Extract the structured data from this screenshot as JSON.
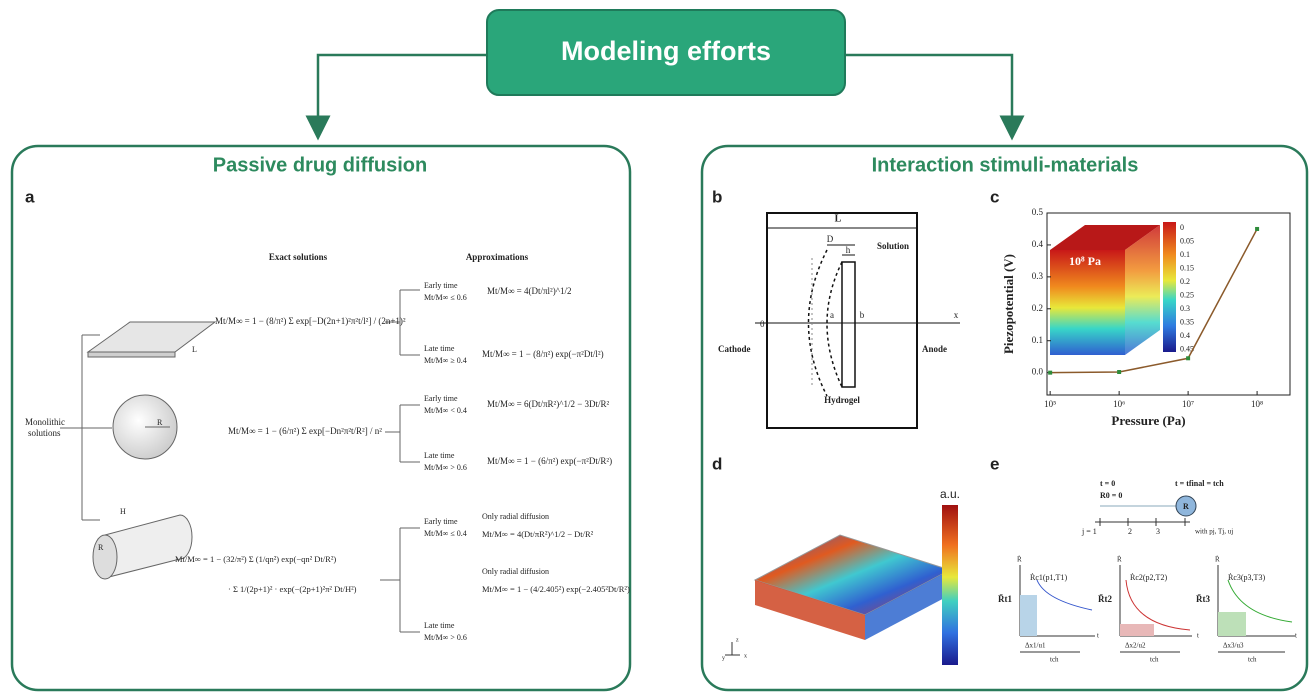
{
  "header": {
    "title": "Modeling efforts"
  },
  "panel_a": {
    "section_title": "Passive drug diffusion",
    "label": "a",
    "col_headers": [
      "Exact solutions",
      "Approximations"
    ],
    "monolithic": [
      "Monolithic",
      "solutions"
    ],
    "geometry_labels": [
      "L",
      "R",
      "H",
      "R"
    ],
    "slab": {
      "exact": "Mt/M∞ = 1 − (8/π²) Σ exp[−D(2n+1)²π²t/l²] / (2n+1)²",
      "early": [
        "Early time",
        "Mt/M∞ ≤ 0.6"
      ],
      "early_approx": "Mt/M∞ = 4(Dt/πl²)^1/2",
      "late": [
        "Late time",
        "Mt/M∞ ≥ 0.4"
      ],
      "late_approx": "Mt/M∞ = 1 − (8/π²) exp(−π²Dt/l²)"
    },
    "sphere": {
      "exact": "Mt/M∞ = 1 − (6/π²) Σ exp[−Dn²π²t/R²] / n²",
      "early": [
        "Early time",
        "Mt/M∞ < 0.4"
      ],
      "early_approx": "Mt/M∞ = 6(Dt/πR²)^1/2 − 3Dt/R²",
      "late": [
        "Late time",
        "Mt/M∞ > 0.6"
      ],
      "late_approx": "Mt/M∞ = 1 − (6/π²) exp(−π²Dt/R²)"
    },
    "cylinder": {
      "exact": [
        "Mt/M∞ = 1 − (32/π²) Σ (1/qn²) exp(−qn² Dt/R²)",
        "· Σ 1/(2p+1)² · exp(−(2p+1)²π² Dt/H²)"
      ],
      "early": [
        "Early time",
        "Mt/M∞ ≤ 0.4"
      ],
      "early_note": "Only radial diffusion",
      "early_approx": "Mt/M∞ = 4(Dt/πR²)^1/2 − Dt/R²",
      "late": [
        "Late time",
        "Mt/M∞ > 0.6"
      ],
      "late_note": "Only radial diffusion",
      "late_approx": "Mt/M∞ = 1 − (4/2.405²) exp(−2.405²Dt/R²)"
    }
  },
  "panel_right": {
    "section_title": "Interaction stimuli-materials"
  },
  "panel_b": {
    "label": "b",
    "texts": [
      "L",
      "D",
      "h",
      "Solution",
      "0",
      "a",
      "b",
      "x",
      "Cathode",
      "Anode",
      "Hydrogel"
    ]
  },
  "panel_c": {
    "label": "c",
    "inset_label": "10⁸ Pa",
    "colorbar_ticks": [
      "0",
      "0.05",
      "0.1",
      "0.15",
      "0.2",
      "0.25",
      "0.3",
      "0.35",
      "0.4",
      "0.45"
    ],
    "chart": {
      "type": "line",
      "x_label": "Pressure (Pa)",
      "y_label": "Piezopotential (V)",
      "x": [
        100000,
        1000000,
        10000000,
        100000000
      ],
      "values": [
        0,
        0.002,
        0.045,
        0.45
      ],
      "color": "#8b5a2b",
      "marker_color": "#2e8b3a",
      "log_x": true,
      "xlim": [
        90000,
        300000000
      ],
      "ylim": [
        -0.07,
        0.5
      ],
      "xticks": [
        {
          "value": 100000,
          "label": "10⁵"
        },
        {
          "value": 1000000,
          "label": "10⁶"
        },
        {
          "value": 10000000,
          "label": "10⁷"
        },
        {
          "value": 100000000,
          "label": "10⁸"
        }
      ],
      "yticks": [
        {
          "value": 0,
          "label": "0.0"
        },
        0.1,
        0.2,
        0.3,
        0.4,
        0.5
      ]
    }
  },
  "panel_d": {
    "label": "d",
    "colorbar_label": "a.u.",
    "axes": [
      "x",
      "y",
      "z"
    ]
  },
  "panel_e": {
    "label": "e",
    "top": [
      "t = 0",
      "t = tfinal = tch",
      "R0 = 0",
      "R",
      "j = 1",
      "2",
      "3",
      "with pj, Tj, uj"
    ],
    "plots": [
      {
        "y": "Ṙ",
        "x": "t",
        "curve": "Ṙc1(p1,T1)",
        "level": "R̄t1",
        "dx": "Δx1/u1",
        "t": "tch"
      },
      {
        "y": "Ṙ",
        "x": "t",
        "curve": "Ṙc2(p2,T2)",
        "level": "R̄t2",
        "dx": "Δx2/u2",
        "t": "tch"
      },
      {
        "y": "Ṙ",
        "x": "t",
        "curve": "Ṙc3(p3,T3)",
        "level": "R̄t3",
        "dx": "Δx3/u3",
        "t": "tch"
      }
    ]
  }
}
